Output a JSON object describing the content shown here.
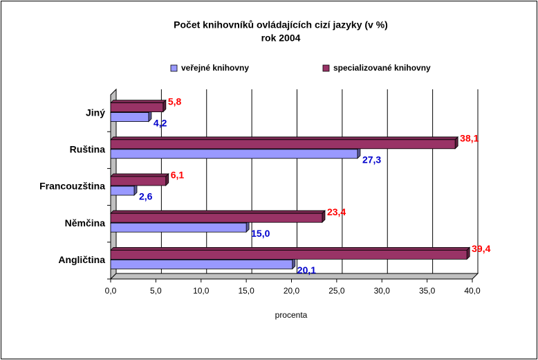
{
  "chart_data": {
    "type": "bar3d_horizontal",
    "title": "Počet knihovníků ovládajících cizí jazyky (v %)",
    "subtitle": "rok 2004",
    "categories": [
      "Angličtina",
      "Němčina",
      "Francouzština",
      "Ruština",
      "Jiný"
    ],
    "series": [
      {
        "name": "veřejné knihovny",
        "color": "#9999ff",
        "values": [
          20.1,
          15.0,
          2.6,
          27.3,
          4.2
        ],
        "value_labels": [
          "20,1",
          "15,0",
          "2,6",
          "27,3",
          "4,2"
        ],
        "label_color": "#0000cc"
      },
      {
        "name": "specializované knihovny",
        "color": "#993366",
        "values": [
          39.4,
          23.4,
          6.1,
          38.1,
          5.8
        ],
        "value_labels": [
          "39,4",
          "23,4",
          "6,1",
          "38,1",
          "5,8"
        ],
        "label_color": "#ff0000"
      }
    ],
    "xlabel": "procenta",
    "xlim": [
      0,
      40
    ],
    "xticks": [
      {
        "value": 0,
        "label": "0,0"
      },
      {
        "value": 5,
        "label": "5,0"
      },
      {
        "value": 10,
        "label": "10,0"
      },
      {
        "value": 15,
        "label": "15,0"
      },
      {
        "value": 20,
        "label": "20,0"
      },
      {
        "value": 25,
        "label": "25,0"
      },
      {
        "value": 30,
        "label": "30,0"
      },
      {
        "value": 35,
        "label": "35,0"
      },
      {
        "value": 40,
        "label": "40,0"
      }
    ],
    "grid": true,
    "legend": "top"
  }
}
